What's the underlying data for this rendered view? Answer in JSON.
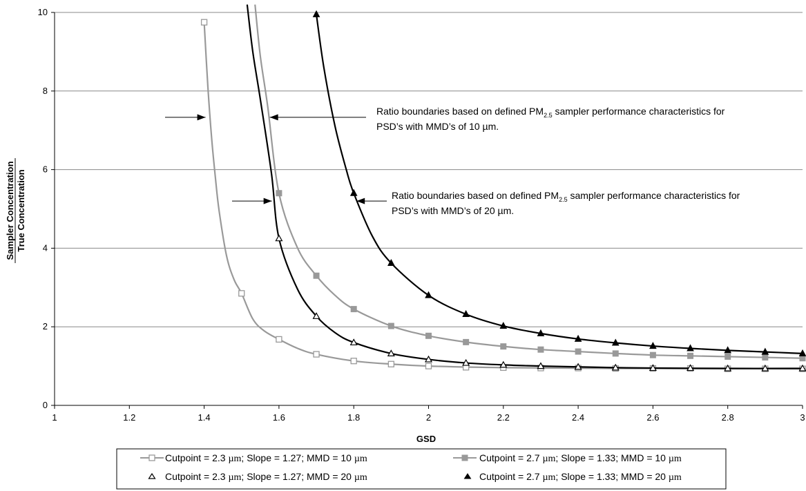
{
  "chart_data": {
    "type": "line",
    "xlabel": "GSD",
    "ylabel_numerator": "Sampler Concentration",
    "ylabel_denominator": "True Concentration",
    "xlim": [
      1,
      3
    ],
    "ylim": [
      0,
      10
    ],
    "x_ticks": [
      "1",
      "1.2",
      "1.4",
      "1.6",
      "1.8",
      "2",
      "2.2",
      "2.4",
      "2.6",
      "2.8",
      "3"
    ],
    "y_ticks": [
      "0",
      "2",
      "4",
      "6",
      "8",
      "10"
    ],
    "grid": "horizontal",
    "legend_position": "bottom",
    "series": [
      {
        "name": "Cutpoint = 2.3 µm; Slope = 1.27; MMD = 10 µm",
        "color": "#999999",
        "marker": "open-square",
        "line": true,
        "curve": [
          [
            1.4,
            9.75
          ],
          [
            1.41,
            8.1
          ],
          [
            1.42,
            6.8
          ],
          [
            1.43,
            5.8
          ],
          [
            1.44,
            4.95
          ],
          [
            1.46,
            3.8
          ],
          [
            1.48,
            3.2
          ],
          [
            1.5,
            2.85
          ],
          [
            1.53,
            2.2
          ],
          [
            1.56,
            1.9
          ],
          [
            1.6,
            1.68
          ],
          [
            1.65,
            1.45
          ],
          [
            1.7,
            1.3
          ],
          [
            1.8,
            1.13
          ],
          [
            1.9,
            1.05
          ],
          [
            2,
            1.0
          ],
          [
            2.2,
            0.96
          ],
          [
            2.5,
            0.94
          ],
          [
            3,
            0.93
          ]
        ],
        "markers": [
          [
            1.4,
            9.75
          ],
          [
            1.5,
            2.85
          ],
          [
            1.6,
            1.68
          ],
          [
            1.7,
            1.3
          ],
          [
            1.8,
            1.13
          ],
          [
            1.9,
            1.05
          ],
          [
            2,
            1.0
          ],
          [
            2.1,
            0.97
          ],
          [
            2.2,
            0.96
          ],
          [
            2.3,
            0.95
          ],
          [
            2.4,
            0.95
          ],
          [
            2.5,
            0.94
          ],
          [
            2.6,
            0.94
          ],
          [
            2.7,
            0.94
          ],
          [
            2.8,
            0.93
          ],
          [
            2.9,
            0.93
          ],
          [
            3,
            0.93
          ]
        ]
      },
      {
        "name": "Cutpoint = 2.7 µm; Slope = 1.33; MMD = 10 µm",
        "color": "#999999",
        "marker": "filled-square",
        "line": true,
        "curve": [
          [
            1.536,
            10.2
          ],
          [
            1.55,
            8.9
          ],
          [
            1.57,
            7.6
          ],
          [
            1.6,
            5.4
          ],
          [
            1.65,
            4.0
          ],
          [
            1.7,
            3.3
          ],
          [
            1.75,
            2.8
          ],
          [
            1.8,
            2.45
          ],
          [
            1.9,
            2.02
          ],
          [
            2,
            1.77
          ],
          [
            2.1,
            1.61
          ],
          [
            2.2,
            1.5
          ],
          [
            2.3,
            1.42
          ],
          [
            2.4,
            1.37
          ],
          [
            2.5,
            1.32
          ],
          [
            2.6,
            1.28
          ],
          [
            2.7,
            1.26
          ],
          [
            2.8,
            1.24
          ],
          [
            2.9,
            1.22
          ],
          [
            3,
            1.2
          ]
        ],
        "markers": [
          [
            1.6,
            5.4
          ],
          [
            1.7,
            3.3
          ],
          [
            1.8,
            2.45
          ],
          [
            1.9,
            2.02
          ],
          [
            2,
            1.77
          ],
          [
            2.1,
            1.61
          ],
          [
            2.2,
            1.5
          ],
          [
            2.3,
            1.42
          ],
          [
            2.4,
            1.37
          ],
          [
            2.5,
            1.32
          ],
          [
            2.6,
            1.28
          ],
          [
            2.7,
            1.26
          ],
          [
            2.8,
            1.24
          ],
          [
            2.9,
            1.22
          ],
          [
            3,
            1.2
          ]
        ]
      },
      {
        "name": "Cutpoint = 2.3 µm; Slope = 1.27; MMD = 20 µm",
        "color": "#000000",
        "marker": "open-triangle",
        "line": false,
        "curve": [
          [
            1.515,
            10.2
          ],
          [
            1.53,
            9.0
          ],
          [
            1.55,
            7.8
          ],
          [
            1.58,
            5.9
          ],
          [
            1.6,
            4.25
          ],
          [
            1.65,
            2.95
          ],
          [
            1.7,
            2.27
          ],
          [
            1.75,
            1.85
          ],
          [
            1.8,
            1.6
          ],
          [
            1.9,
            1.32
          ],
          [
            2,
            1.17
          ],
          [
            2.1,
            1.08
          ],
          [
            2.2,
            1.03
          ],
          [
            2.3,
            1.0
          ],
          [
            2.4,
            0.98
          ],
          [
            2.5,
            0.96
          ],
          [
            2.6,
            0.95
          ],
          [
            2.8,
            0.94
          ],
          [
            3,
            0.94
          ]
        ],
        "markers": [
          [
            1.6,
            4.25
          ],
          [
            1.7,
            2.27
          ],
          [
            1.8,
            1.6
          ],
          [
            1.9,
            1.32
          ],
          [
            2,
            1.17
          ],
          [
            2.1,
            1.08
          ],
          [
            2.2,
            1.03
          ],
          [
            2.3,
            1.0
          ],
          [
            2.4,
            0.98
          ],
          [
            2.5,
            0.96
          ],
          [
            2.6,
            0.95
          ],
          [
            2.7,
            0.95
          ],
          [
            2.8,
            0.94
          ],
          [
            2.9,
            0.94
          ],
          [
            3,
            0.94
          ]
        ]
      },
      {
        "name": "Cutpoint = 2.7 µm; Slope = 1.33; MMD = 20 µm",
        "color": "#000000",
        "marker": "filled-triangle",
        "line": false,
        "curve": [
          [
            1.7,
            9.95
          ],
          [
            1.72,
            8.6
          ],
          [
            1.75,
            7.1
          ],
          [
            1.78,
            6.0
          ],
          [
            1.8,
            5.4
          ],
          [
            1.85,
            4.3
          ],
          [
            1.9,
            3.62
          ],
          [
            2,
            2.8
          ],
          [
            2.1,
            2.32
          ],
          [
            2.2,
            2.02
          ],
          [
            2.3,
            1.83
          ],
          [
            2.4,
            1.69
          ],
          [
            2.5,
            1.59
          ],
          [
            2.6,
            1.51
          ],
          [
            2.7,
            1.45
          ],
          [
            2.8,
            1.4
          ],
          [
            2.9,
            1.36
          ],
          [
            3,
            1.32
          ]
        ],
        "markers": [
          [
            1.7,
            9.95
          ],
          [
            1.8,
            5.4
          ],
          [
            1.9,
            3.62
          ],
          [
            2,
            2.8
          ],
          [
            2.1,
            2.32
          ],
          [
            2.2,
            2.02
          ],
          [
            2.3,
            1.83
          ],
          [
            2.4,
            1.69
          ],
          [
            2.5,
            1.59
          ],
          [
            2.6,
            1.51
          ],
          [
            2.7,
            1.45
          ],
          [
            2.8,
            1.4
          ],
          [
            2.9,
            1.36
          ],
          [
            3,
            1.32
          ]
        ]
      }
    ],
    "annotations": [
      {
        "line1_before": "Ratio boundaries based on defined PM",
        "line1_sub": "2.5",
        "line1_after": " sampler performance characteristics for",
        "line2": "PSD’s with MMD’s of 10 µm.",
        "arrow_points": [
          [
            1.4,
            7.33
          ],
          [
            1.57,
            7.33
          ]
        ]
      },
      {
        "line1_before": "Ratio boundaries based on defined PM",
        "line1_sub": "2.5",
        "line1_after": " sampler performance characteristics for",
        "line2": "PSD’s with MMD’s of 20 µm.",
        "arrow_points": [
          [
            1.57,
            5.2
          ],
          [
            1.8,
            5.2
          ]
        ]
      }
    ]
  },
  "legend": {
    "entries": [
      {
        "prefix": "Cutpoint = 2.3 ",
        "unit1": "µm",
        "middle": "; Slope = 1.27; MMD = 10 ",
        "unit2": "µm"
      },
      {
        "prefix": "Cutpoint = 2.7 ",
        "unit1": "µm",
        "middle": "; Slope = 1.33; MMD = 10 ",
        "unit2": "µm"
      },
      {
        "prefix": "Cutpoint = 2.3 ",
        "unit1": "µm",
        "middle": "; Slope = 1.27; MMD = 20 ",
        "unit2": "µm"
      },
      {
        "prefix": "Cutpoint = 2.7 ",
        "unit1": "µm",
        "middle": "; Slope = 1.33; MMD = 20 ",
        "unit2": "µm"
      }
    ]
  }
}
